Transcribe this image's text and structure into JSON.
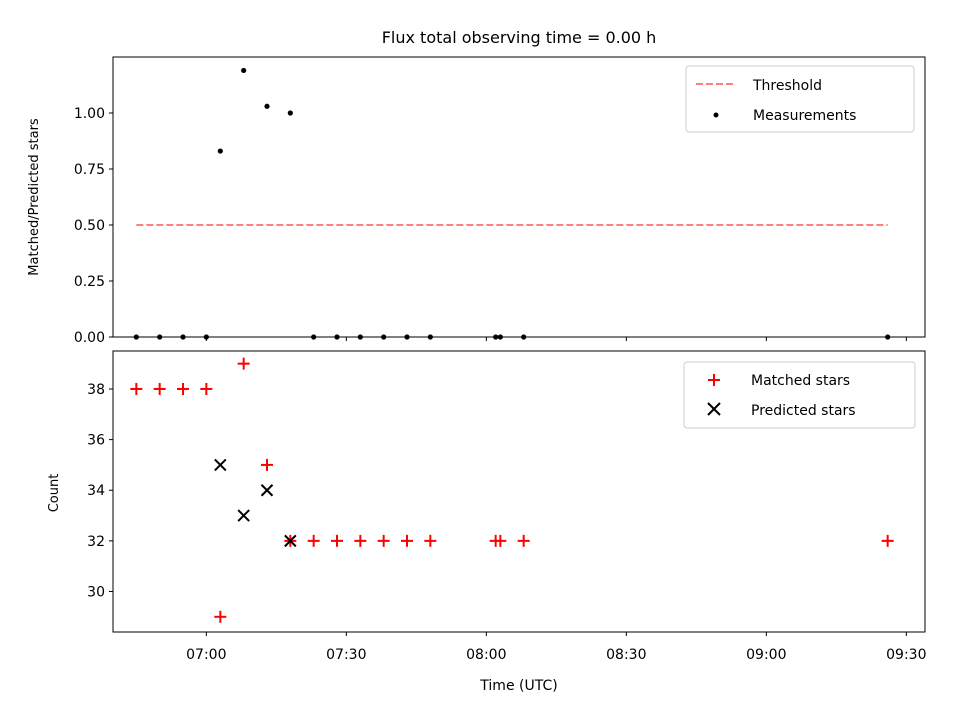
{
  "chart_data": [
    {
      "type": "scatter",
      "title": "Flux total observing time = 0.00 h",
      "xlabel": "",
      "ylabel": "Matched/Predicted stars",
      "ylim": [
        0,
        1.25
      ],
      "xlim": [
        "06:40",
        "09:34"
      ],
      "yticks": [
        "0.00",
        "0.25",
        "0.50",
        "0.75",
        "1.00"
      ],
      "legend_position": "top-right",
      "threshold": {
        "name": "Threshold",
        "value": 0.5,
        "x_start": "06:45",
        "x_end": "09:26",
        "color": "#ff7f7f",
        "style": "dashed"
      },
      "series": [
        {
          "name": "Measurements",
          "color": "#000000",
          "marker": "dot",
          "points": [
            {
              "x": "06:45",
              "y": 0.0
            },
            {
              "x": "06:50",
              "y": 0.0
            },
            {
              "x": "06:55",
              "y": 0.0
            },
            {
              "x": "07:00",
              "y": 0.0
            },
            {
              "x": "07:03",
              "y": 0.83
            },
            {
              "x": "07:08",
              "y": 1.19
            },
            {
              "x": "07:13",
              "y": 1.03
            },
            {
              "x": "07:18",
              "y": 1.0
            },
            {
              "x": "07:23",
              "y": 0.0
            },
            {
              "x": "07:28",
              "y": 0.0
            },
            {
              "x": "07:33",
              "y": 0.0
            },
            {
              "x": "07:38",
              "y": 0.0
            },
            {
              "x": "07:43",
              "y": 0.0
            },
            {
              "x": "07:48",
              "y": 0.0
            },
            {
              "x": "08:02",
              "y": 0.0
            },
            {
              "x": "08:03",
              "y": 0.0
            },
            {
              "x": "08:08",
              "y": 0.0
            },
            {
              "x": "09:26",
              "y": 0.0
            }
          ]
        }
      ]
    },
    {
      "type": "scatter",
      "title": "",
      "xlabel": "Time (UTC)",
      "ylabel": "Count",
      "ylim": [
        28.4,
        39.5
      ],
      "xlim": [
        "06:40",
        "09:34"
      ],
      "yticks": [
        "30",
        "32",
        "34",
        "36",
        "38"
      ],
      "xticks": [
        "07:00",
        "07:30",
        "08:00",
        "08:30",
        "09:00",
        "09:30"
      ],
      "legend_position": "top-right",
      "series": [
        {
          "name": "Matched stars",
          "color": "#ff0000",
          "marker": "plus",
          "points": [
            {
              "x": "06:45",
              "y": 38
            },
            {
              "x": "06:50",
              "y": 38
            },
            {
              "x": "06:55",
              "y": 38
            },
            {
              "x": "07:00",
              "y": 38
            },
            {
              "x": "07:03",
              "y": 29
            },
            {
              "x": "07:08",
              "y": 39
            },
            {
              "x": "07:13",
              "y": 35
            },
            {
              "x": "07:18",
              "y": 32
            },
            {
              "x": "07:23",
              "y": 32
            },
            {
              "x": "07:28",
              "y": 32
            },
            {
              "x": "07:33",
              "y": 32
            },
            {
              "x": "07:38",
              "y": 32
            },
            {
              "x": "07:43",
              "y": 32
            },
            {
              "x": "07:48",
              "y": 32
            },
            {
              "x": "08:02",
              "y": 32
            },
            {
              "x": "08:03",
              "y": 32
            },
            {
              "x": "08:08",
              "y": 32
            },
            {
              "x": "09:26",
              "y": 32
            }
          ]
        },
        {
          "name": "Predicted stars",
          "color": "#000000",
          "marker": "x",
          "points": [
            {
              "x": "07:03",
              "y": 35
            },
            {
              "x": "07:08",
              "y": 33
            },
            {
              "x": "07:13",
              "y": 34
            },
            {
              "x": "07:18",
              "y": 32
            }
          ]
        }
      ]
    }
  ]
}
